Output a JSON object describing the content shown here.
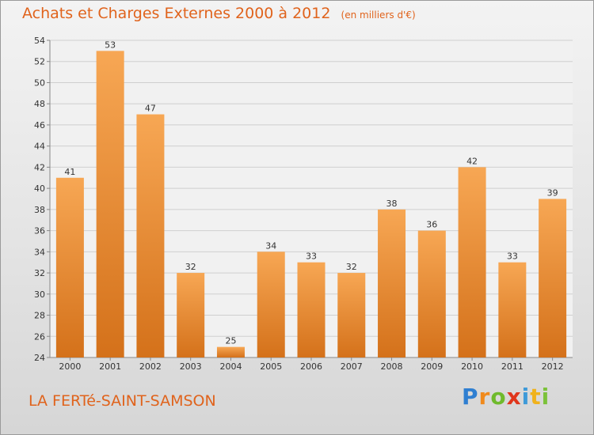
{
  "title": "Achats et Charges Externes 2000 à 2012",
  "subtitle": "(en milliers d'€)",
  "commune": "LA FERTé-SAINT-SAMSON",
  "logo": {
    "letters": [
      "P",
      "r",
      "o",
      "x",
      "i",
      "t",
      "i"
    ],
    "colors": [
      "#2f7fd1",
      "#f08a1c",
      "#6fba2c",
      "#e0361c",
      "#3f9ad8",
      "#f0b21c",
      "#7cc23a"
    ]
  },
  "colors": {
    "accent": "#e0631c",
    "bar_light": "#f7a754",
    "bar_dark": "#d4711a"
  },
  "chart_data": {
    "type": "bar",
    "title": "Achats et Charges Externes 2000 à 2012",
    "categories": [
      "2000",
      "2001",
      "2002",
      "2003",
      "2004",
      "2005",
      "2006",
      "2007",
      "2008",
      "2009",
      "2010",
      "2011",
      "2012"
    ],
    "values": [
      41,
      53,
      47,
      32,
      25,
      34,
      33,
      32,
      38,
      36,
      42,
      33,
      39
    ],
    "ylim": [
      24,
      54
    ],
    "yticks": [
      24,
      26,
      28,
      30,
      32,
      34,
      36,
      38,
      40,
      42,
      44,
      46,
      48,
      50,
      52,
      54
    ],
    "xlabel": "",
    "ylabel": "",
    "grid": true
  }
}
